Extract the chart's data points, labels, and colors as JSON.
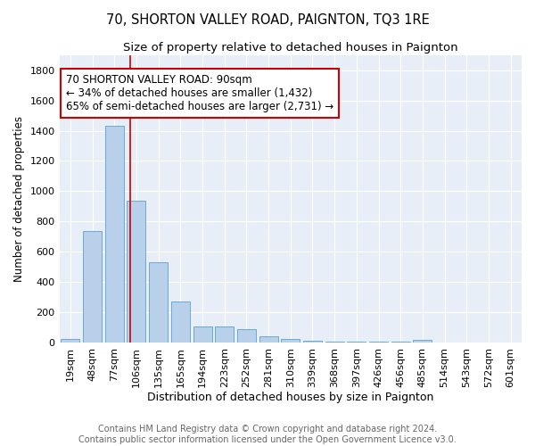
{
  "title": "70, SHORTON VALLEY ROAD, PAIGNTON, TQ3 1RE",
  "subtitle": "Size of property relative to detached houses in Paignton",
  "xlabel": "Distribution of detached houses by size in Paignton",
  "ylabel": "Number of detached properties",
  "footer_line1": "Contains HM Land Registry data © Crown copyright and database right 2024.",
  "footer_line2": "Contains public sector information licensed under the Open Government Licence v3.0.",
  "bin_labels": [
    "19sqm",
    "48sqm",
    "77sqm",
    "106sqm",
    "135sqm",
    "165sqm",
    "194sqm",
    "223sqm",
    "252sqm",
    "281sqm",
    "310sqm",
    "339sqm",
    "368sqm",
    "397sqm",
    "426sqm",
    "456sqm",
    "485sqm",
    "514sqm",
    "543sqm",
    "572sqm",
    "601sqm"
  ],
  "bar_values": [
    22,
    735,
    1432,
    935,
    530,
    270,
    105,
    105,
    90,
    40,
    25,
    15,
    5,
    5,
    5,
    5,
    18,
    0,
    0,
    0,
    0
  ],
  "bar_color": "#b8d0ea",
  "bar_edge_color": "#6aaad4",
  "background_color": "#e8eef7",
  "red_line_x": 2.72,
  "annotation_text": "70 SHORTON VALLEY ROAD: 90sqm\n← 34% of detached houses are smaller (1,432)\n65% of semi-detached houses are larger (2,731) →",
  "annotation_box_color": "#ffffff",
  "annotation_border_color": "#cc0000",
  "ylim": [
    0,
    1900
  ],
  "yticks": [
    0,
    200,
    400,
    600,
    800,
    1000,
    1200,
    1400,
    1600,
    1800
  ],
  "title_fontsize": 10.5,
  "subtitle_fontsize": 9.5,
  "annotation_fontsize": 8.5,
  "xlabel_fontsize": 9,
  "ylabel_fontsize": 8.5,
  "footer_fontsize": 7,
  "tick_fontsize": 8
}
